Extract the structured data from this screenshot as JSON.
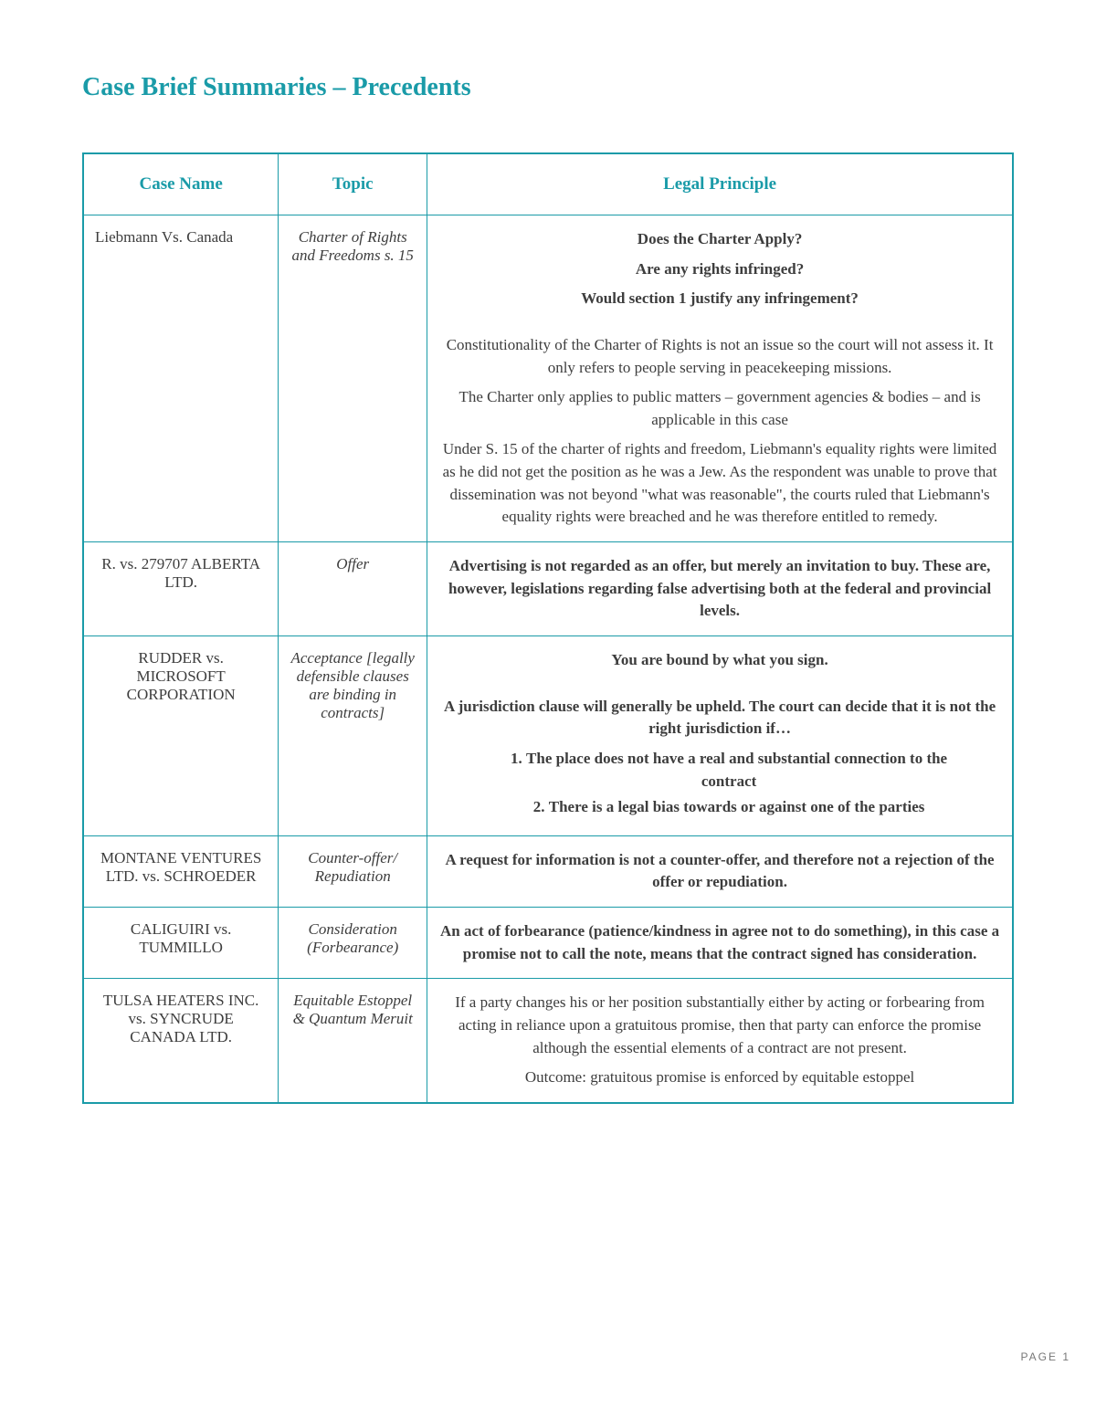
{
  "page_title": "Case Brief Summaries – Precedents",
  "page_number": "PAGE 1",
  "colors": {
    "accent": "#1a9ba8",
    "text": "#444444",
    "body_bg": "#ffffff"
  },
  "headers": {
    "case": "Case Name",
    "topic": "Topic",
    "principle": "Legal Principle"
  },
  "rows": [
    {
      "case_name": "Liebmann Vs. Canada",
      "case_align": "left",
      "topic": "Charter of Rights and Freedoms s. 15",
      "principle": {
        "lead_bold": [
          "Does the Charter Apply?",
          "Are any rights infringed?",
          "Would section 1 justify any infringement?"
        ],
        "paragraphs": [
          "Constitutionality of the Charter of Rights is not an issue so the court will not assess it. It only refers to people serving in peacekeeping missions.",
          "The Charter only applies to public matters – government agencies & bodies – and is applicable in this case",
          "Under S. 15 of the charter of rights and freedom, Liebmann's equality rights were limited as he did not get the position as he was a Jew. As the respondent was unable to prove that dissemination was not beyond \"what was reasonable\", the courts ruled that Liebmann's equality rights were breached and he was therefore entitled to remedy."
        ]
      }
    },
    {
      "case_name": "R. vs. 279707 ALBERTA LTD.",
      "case_align": "center",
      "topic": "Offer",
      "principle": {
        "bold_paragraphs": [
          "Advertising is not regarded as an offer, but merely an invitation to buy. These are, however, legislations regarding false advertising both at the federal and provincial levels."
        ]
      }
    },
    {
      "case_name": "RUDDER vs. MICROSOFT CORPORATION",
      "case_align": "center",
      "topic": "Acceptance [legally defensible clauses are binding in contracts]",
      "principle": {
        "lead_bold": [
          "You are bound by what you sign."
        ],
        "bold_paragraphs": [
          "A jurisdiction clause will generally be upheld. The court can decide that it is not the right jurisdiction if…"
        ],
        "ordered": [
          "The place does not have a real and substantial connection to the contract",
          "There is a legal bias towards or against one of the parties"
        ]
      }
    },
    {
      "case_name": "MONTANE VENTURES LTD. vs. SCHROEDER",
      "case_align": "center",
      "topic": "Counter-offer/ Repudiation",
      "principle": {
        "bold_paragraphs": [
          "A request for information is not a counter-offer, and therefore not a rejection of the offer or repudiation."
        ]
      }
    },
    {
      "case_name": "CALIGUIRI vs. TUMMILLO",
      "case_align": "center",
      "topic": "Consideration (Forbearance)",
      "principle": {
        "bold_paragraphs": [
          "An act of forbearance (patience/kindness in agree not to do something), in this case a promise not to call the note, means that the contract signed has consideration."
        ]
      }
    },
    {
      "case_name": "TULSA HEATERS INC. vs. SYNCRUDE CANADA LTD.",
      "case_align": "center",
      "topic": "Equitable Estoppel & Quantum Meruit",
      "principle": {
        "paragraphs": [
          "If a party changes his or her position substantially either by acting or forbearing from acting in reliance upon a gratuitous promise, then that party can enforce the promise although the essential elements of a contract are not present.",
          "Outcome: gratuitous promise is enforced by equitable estoppel"
        ]
      }
    }
  ]
}
